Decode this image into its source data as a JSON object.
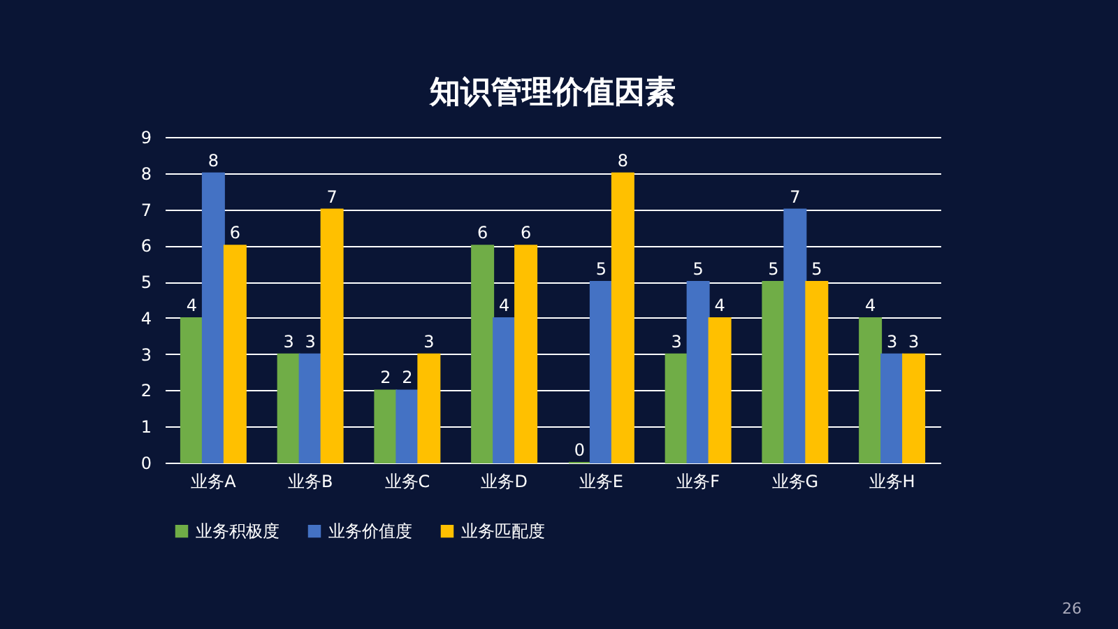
{
  "chart_data": {
    "type": "bar",
    "title": "知识管理价值因素",
    "categories": [
      "业务A",
      "业务B",
      "业务C",
      "业务D",
      "业务E",
      "业务F",
      "业务G",
      "业务H"
    ],
    "series": [
      {
        "name": "业务积极度",
        "color": "#70ad47",
        "values": [
          4,
          3,
          2,
          6,
          0,
          3,
          5,
          4
        ]
      },
      {
        "name": "业务价值度",
        "color": "#4472c4",
        "values": [
          8,
          3,
          2,
          4,
          5,
          5,
          7,
          3
        ]
      },
      {
        "name": "业务匹配度",
        "color": "#ffc000",
        "values": [
          6,
          7,
          3,
          6,
          8,
          4,
          5,
          3
        ]
      }
    ],
    "ylim": [
      0,
      9
    ],
    "yticks": [
      0,
      1,
      2,
      3,
      4,
      5,
      6,
      7,
      8,
      9
    ],
    "grid": "y",
    "legend": "bottom",
    "data_labels": true,
    "annotations": [
      "26"
    ]
  }
}
